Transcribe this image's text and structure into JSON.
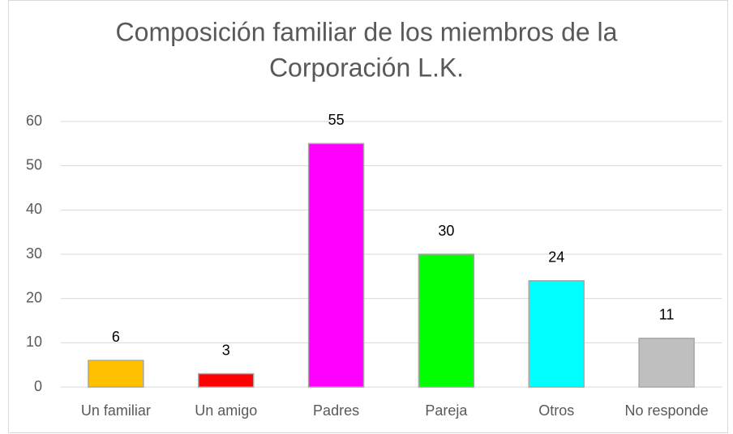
{
  "chart_data": {
    "type": "bar",
    "title": [
      "Composición familiar de los miembros de la",
      "Corporación  L.K."
    ],
    "categories": [
      "Un familiar",
      "Un amigo",
      "Padres",
      "Pareja",
      "Otros",
      "No responde"
    ],
    "values": [
      6,
      3,
      55,
      30,
      24,
      11
    ],
    "colors": [
      "#ffc000",
      "#ff0000",
      "#ff00ff",
      "#00ff00",
      "#00ffff",
      "#bfbfbf"
    ],
    "ylim": [
      0,
      60
    ],
    "yticks": [
      0,
      10,
      20,
      30,
      40,
      50,
      60
    ],
    "grid": true
  }
}
